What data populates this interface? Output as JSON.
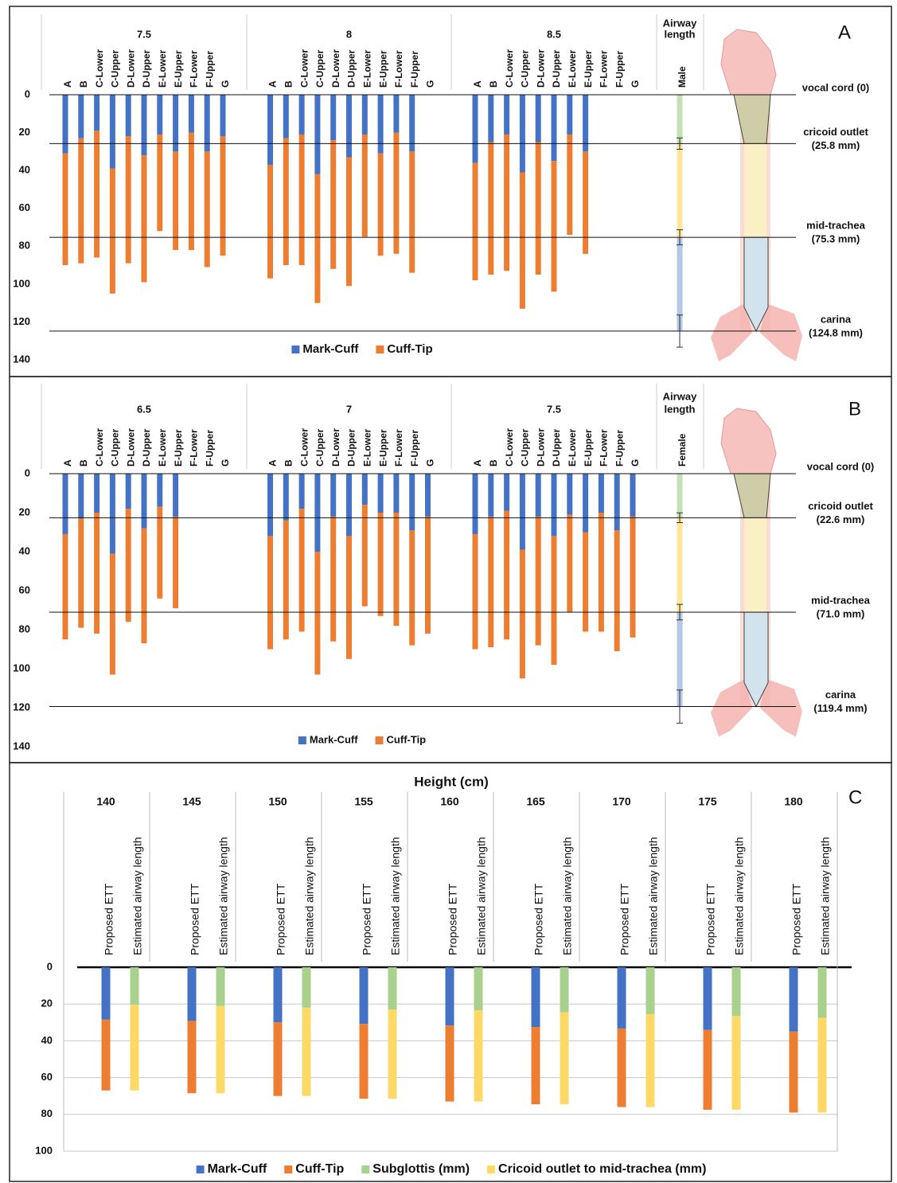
{
  "chart_data": [
    {
      "type": "bar",
      "panel": "A",
      "ylim": [
        0,
        140
      ],
      "yticks": [
        0,
        20,
        40,
        60,
        80,
        100,
        120,
        140
      ],
      "y_inverted": true,
      "grid": false,
      "legend": "bottom",
      "groups": [
        {
          "label": "7.5",
          "categories": [
            "A",
            "B",
            "C-Lower",
            "C-Upper",
            "D-Lower",
            "D-Upper",
            "E-Lower",
            "E-Upper",
            "F-Lower",
            "F-Upper",
            "G"
          ]
        },
        {
          "label": "8",
          "categories": [
            "A",
            "B",
            "C-Lower",
            "C-Upper",
            "D-Lower",
            "D-Upper",
            "E-Lower",
            "E-Upper",
            "F-Lower",
            "F-Upper",
            "G"
          ]
        },
        {
          "label": "8.5",
          "categories": [
            "A",
            "B",
            "C-Lower",
            "C-Upper",
            "D-Lower",
            "D-Upper",
            "E-Lower",
            "E-Upper",
            "F-Lower",
            "F-Upper",
            "G"
          ]
        }
      ],
      "series": [
        {
          "name": "Mark-Cuff",
          "color": "#4472c4",
          "values": [
            [
              31,
              23,
              19,
              39,
              22,
              32,
              21,
              30,
              20,
              30,
              22
            ],
            [
              37,
              23,
              21,
              42,
              24,
              33,
              21,
              31,
              20,
              30,
              null
            ],
            [
              36,
              25,
              21,
              41,
              25,
              35,
              21,
              30,
              null,
              null,
              null
            ]
          ]
        },
        {
          "name": "Cuff-Tip",
          "color": "#ed7d31",
          "values": [
            [
              59,
              66,
              67,
              66,
              67,
              67,
              51,
              52,
              62,
              61,
              63
            ],
            [
              60,
              67,
              69,
              68,
              68,
              68,
              54,
              54,
              64,
              64,
              null
            ],
            [
              62,
              70,
              72,
              72,
              70,
              69,
              53,
              54,
              null,
              null,
              null
            ]
          ]
        }
      ],
      "airway": {
        "title": [
          "Airway",
          "length"
        ],
        "label": "Male",
        "colors": [
          "#c5e0b4",
          "#ffe699",
          "#b4c7e7"
        ]
      },
      "landmarks": [
        {
          "value": 0,
          "label": [
            "vocal cord (0)"
          ],
          "error": null
        },
        {
          "value": 25.8,
          "label": [
            "cricoid outlet",
            "(25.8 mm)"
          ],
          "error": 3
        },
        {
          "value": 75.3,
          "label": [
            "mid-trachea",
            "(75.3 mm)"
          ],
          "error": 4
        },
        {
          "value": 124.8,
          "label": [
            "carina",
            "(124.8 mm)"
          ],
          "error": 8.5
        }
      ]
    },
    {
      "type": "bar",
      "panel": "B",
      "ylim": [
        0,
        140
      ],
      "yticks": [
        0,
        20,
        40,
        60,
        80,
        100,
        120,
        140
      ],
      "y_inverted": true,
      "grid": false,
      "legend": "bottom",
      "groups": [
        {
          "label": "6.5",
          "categories": [
            "A",
            "B",
            "C-Lower",
            "C-Upper",
            "D-Lower",
            "D-Upper",
            "E-Lower",
            "E-Upper",
            "F-Lower",
            "F-Upper",
            "G"
          ]
        },
        {
          "label": "7",
          "categories": [
            "A",
            "B",
            "C-Lower",
            "C-Upper",
            "D-Lower",
            "D-Upper",
            "E-Lower",
            "E-Upper",
            "F-Lower",
            "F-Upper",
            "G"
          ]
        },
        {
          "label": "7.5",
          "categories": [
            "A",
            "B",
            "C-Lower",
            "C-Upper",
            "D-Lower",
            "D-Upper",
            "E-Lower",
            "E-Upper",
            "F-Lower",
            "F-Upper",
            "G"
          ]
        }
      ],
      "series": [
        {
          "name": "Mark-Cuff",
          "color": "#4472c4",
          "values": [
            [
              31,
              23,
              20,
              41,
              18,
              28,
              17,
              22,
              null,
              null,
              null
            ],
            [
              32,
              24,
              18,
              40,
              22,
              32,
              16,
              20,
              20,
              29,
              22
            ],
            [
              31,
              22,
              19,
              39,
              22,
              32,
              21,
              30,
              20,
              29,
              22
            ]
          ]
        },
        {
          "name": "Cuff-Tip",
          "color": "#ed7d31",
          "values": [
            [
              54,
              56,
              62,
              62,
              58,
              59,
              47,
              47,
              null,
              null,
              null
            ],
            [
              58,
              61,
              63,
              63,
              64,
              63,
              52,
              53,
              58,
              59,
              60
            ],
            [
              59,
              67,
              66,
              66,
              66,
              66,
              50,
              51,
              61,
              62,
              62
            ]
          ]
        }
      ],
      "airway": {
        "title": [
          "Airway",
          "length"
        ],
        "label": "Female",
        "colors": [
          "#c5e0b4",
          "#ffe699",
          "#b4c7e7"
        ]
      },
      "landmarks": [
        {
          "value": 0,
          "label": [
            "vocal cord (0)"
          ],
          "error": null
        },
        {
          "value": 22.6,
          "label": [
            "cricoid outlet",
            "(22.6 mm)"
          ],
          "error": 2.5
        },
        {
          "value": 71.0,
          "label": [
            "mid-trachea",
            "(71.0 mm)"
          ],
          "error": 4
        },
        {
          "value": 119.4,
          "label": [
            "carina",
            "(119.4 mm)"
          ],
          "error": 8.5
        }
      ]
    },
    {
      "type": "bar",
      "panel": "C",
      "title": "Height (cm)",
      "ylim": [
        0,
        100
      ],
      "yticks": [
        0,
        20,
        40,
        60,
        80,
        100
      ],
      "y_inverted": true,
      "grid": true,
      "legend": "bottom",
      "categories": [
        "140",
        "145",
        "150",
        "155",
        "160",
        "165",
        "170",
        "175",
        "180"
      ],
      "bars": [
        {
          "label": "Proposed ETT",
          "series": [
            {
              "name": "Mark-Cuff",
              "color": "#4472c4",
              "values": [
                28.5,
                29.2,
                30,
                30.8,
                31.7,
                32.5,
                33.3,
                34.1,
                35
              ]
            },
            {
              "name": "Cuff-Tip",
              "color": "#ed7d31",
              "values": [
                38.5,
                39.3,
                40,
                40.7,
                41.3,
                42,
                42.7,
                43.4,
                44
              ]
            }
          ]
        },
        {
          "label": "Estimated airway length",
          "series": [
            {
              "name": "Subglottis (mm)",
              "color": "#a9d18e",
              "values": [
                20.5,
                21,
                22,
                23,
                23.5,
                24.5,
                25.5,
                26.5,
                27.5
              ]
            },
            {
              "name": "Cricoid outlet to mid-trachea (mm)",
              "color": "#ffd966",
              "values": [
                46.5,
                47.5,
                48,
                48.5,
                49.5,
                50,
                50.5,
                51,
                51.5
              ]
            }
          ]
        }
      ]
    }
  ]
}
